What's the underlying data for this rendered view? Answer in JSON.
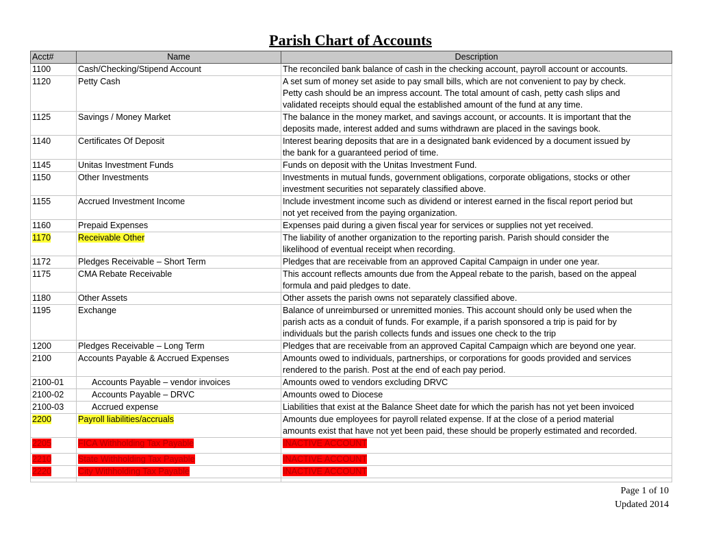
{
  "title": "Parish Chart of Accounts",
  "columns": {
    "acct": "Acct#",
    "name": "Name",
    "description": "Description"
  },
  "colors": {
    "highlight_yellow": "#ffff33",
    "highlight_red": "#ff0000",
    "header_bg": "#c9c9c9"
  },
  "rows": [
    {
      "acct": "1100",
      "name": "Cash/Checking/Stipend Account",
      "desc": [
        "The reconciled bank balance of cash in the checking account, payroll account or accounts."
      ]
    },
    {
      "acct": "1120",
      "name": "Petty Cash",
      "desc": [
        "A set sum of money set aside to pay small bills, which are not convenient to pay by check.",
        "Petty cash should be an impress account.  The total amount of cash, petty cash slips and",
        "validated receipts should equal the established amount of the fund at any time."
      ]
    },
    {
      "acct": "1125",
      "name": "Savings / Money Market",
      "desc": [
        "The balance in the money market, and savings account, or accounts.  It is important that the",
        "deposits made, interest added and sums withdrawn are placed in the savings book."
      ]
    },
    {
      "acct": "1140",
      "name": "Certificates Of Deposit",
      "desc": [
        "Interest bearing deposits that are in a designated bank evidenced by a document issued by",
        "the bank for a guaranteed period of time."
      ]
    },
    {
      "acct": "1145",
      "name": "Unitas Investment Funds",
      "desc": [
        "Funds on deposit with the Unitas Investment Fund."
      ]
    },
    {
      "acct": "1150",
      "name": "Other Investments",
      "desc": [
        "Investments in mutual funds, government obligations, corporate obligations, stocks or other",
        "investment securities not separately classified above."
      ]
    },
    {
      "acct": "1155",
      "name": "Accrued Investment Income",
      "desc": [
        "Include investment income such as dividend or interest earned in the fiscal report period but",
        "not yet received from the paying organization."
      ]
    },
    {
      "acct": "1160",
      "name": "Prepaid Expenses",
      "desc": [
        "Expenses paid during a given fiscal year for services or supplies not yet received."
      ]
    },
    {
      "acct": "1170",
      "name": "Receivable Other",
      "highlight": "yellow",
      "desc": [
        "The liability of another organization to the reporting parish.    Parish should consider the",
        "likelihood of eventual receipt when recording."
      ]
    },
    {
      "acct": "1172",
      "name": "Pledges Receivable – Short Term",
      "desc": [
        "Pledges that are receivable from an approved Capital Campaign in under one year."
      ]
    },
    {
      "acct": "1175",
      "name": "CMA Rebate Receivable",
      "desc": [
        "This account reflects amounts due from the Appeal rebate to the parish, based on the appeal",
        "formula and paid pledges to date."
      ]
    },
    {
      "acct": "1180",
      "name": "Other Assets",
      "desc": [
        "Other assets the parish owns not separately classified above."
      ]
    },
    {
      "acct": "1195",
      "name": "Exchange",
      "desc": [
        "Balance of unreimbursed or unremitted monies.  This account should only be used when the",
        "parish acts as a conduit of funds.  For example, if a parish sponsored a trip is paid for by",
        "individuals but the parish collects funds and issues one check to the trip"
      ]
    },
    {
      "acct": "1200",
      "name": "Pledges Receivable – Long Term",
      "desc": [
        "Pledges that are receivable from an approved Capital Campaign which are beyond one year."
      ]
    },
    {
      "acct": "2100",
      "name": "Accounts Payable & Accrued Expenses",
      "desc": [
        "Amounts owed to individuals, partnerships, or corporations for goods provided and services",
        "rendered to the parish. Post at the end of each pay period."
      ]
    },
    {
      "acct": "2100-01",
      "name": "Accounts Payable – vendor invoices",
      "indent": true,
      "desc": [
        "Amounts owed to vendors excluding DRVC"
      ]
    },
    {
      "acct": "2100-02",
      "name": "Accounts Payable – DRVC",
      "indent": true,
      "desc": [
        "Amounts owed to Diocese"
      ]
    },
    {
      "acct": "2100-03",
      "name": "Accrued expense",
      "indent": true,
      "desc": [
        "Liabilities that exist at the Balance Sheet date for which the parish has not yet been invoiced"
      ]
    },
    {
      "acct": "2200",
      "name": "Payroll liabilities/accruals",
      "highlight": "yellow",
      "desc": [
        "Amounts due employees for payroll related expense.   If at the close of a period material",
        "amounts exist that have not yet been paid, these should be properly estimated and recorded."
      ]
    },
    {
      "acct": "2205",
      "name": "FICA Withholding Tax Payable",
      "highlight": "red",
      "tall": true,
      "desc": [
        "INACTIVE ACCOUNT"
      ]
    },
    {
      "acct": "2210",
      "name": "State Withholding Tax Payable",
      "highlight": "red",
      "desc": [
        "INACTIVE ACCOUNT"
      ]
    },
    {
      "acct": "2220",
      "name": "City Withholding Tax Payable",
      "highlight": "red",
      "desc": [
        "INACTIVE ACCOUNT"
      ]
    }
  ],
  "footer": {
    "page": "Page 1 of 10",
    "updated": "Updated 2014"
  }
}
